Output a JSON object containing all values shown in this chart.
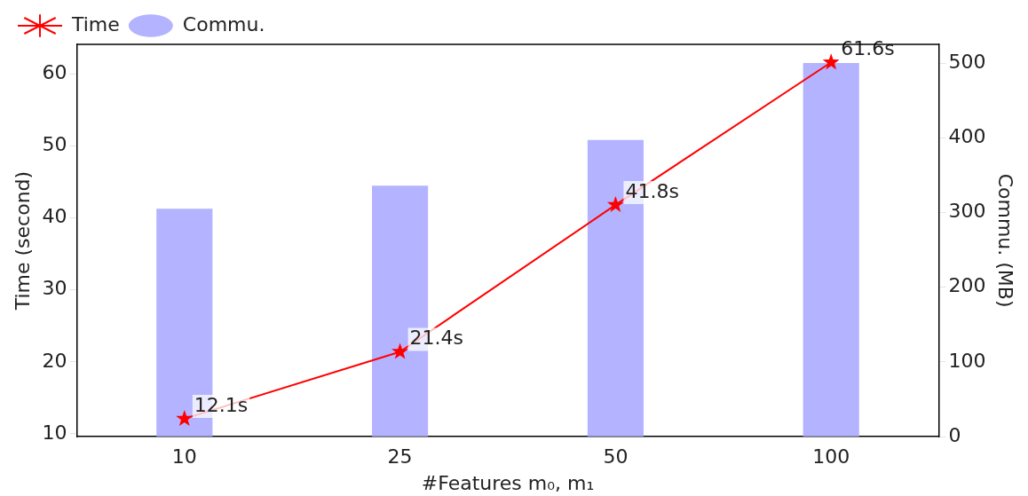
{
  "chart_data": {
    "type": "bar",
    "categories": [
      "10",
      "25",
      "50",
      "100"
    ],
    "xlabel": "#Features m₀, m₁",
    "ylabel": "Time (second)",
    "y2label": "Commu. (MB)",
    "series": [
      {
        "name": "Time",
        "type": "line",
        "color": "#ff0000",
        "values": [
          12.1,
          21.4,
          41.8,
          61.6
        ],
        "value_labels": [
          "12.1s",
          "21.4s",
          "41.8s",
          "61.6s"
        ]
      },
      {
        "name": "Commu.",
        "axis": "y2",
        "color": "#b3b3ff",
        "values": [
          305,
          336,
          397,
          500
        ]
      }
    ],
    "ylim": [
      9.6,
      64.1
    ],
    "yticks": [
      10,
      20,
      30,
      40,
      50,
      60
    ],
    "y2lim": [
      0,
      525
    ],
    "y2ticks": [
      0,
      100,
      200,
      300,
      400,
      500
    ],
    "marker": "star",
    "line_style": "solid",
    "grid": false,
    "legend": "top left"
  }
}
